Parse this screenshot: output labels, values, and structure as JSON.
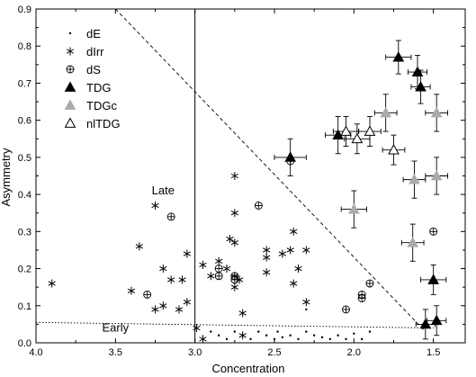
{
  "chart_data": {
    "type": "scatter",
    "title": "",
    "xlabel": "Concentration",
    "ylabel": "Asymmetry",
    "xlim": [
      4.0,
      1.3
    ],
    "ylim": [
      0.0,
      0.9
    ],
    "x_reversed": true,
    "xticks": [
      4.0,
      3.5,
      3.0,
      2.5,
      2.0,
      1.5
    ],
    "xtick_labels": [
      "4.0",
      "3.5",
      "3.0",
      "2.5",
      "2.0",
      "1.5"
    ],
    "yticks": [
      0.0,
      0.1,
      0.2,
      0.3,
      0.4,
      0.5,
      0.6,
      0.7,
      0.8,
      0.9
    ],
    "ytick_labels": [
      "0.0",
      "0.1",
      "0.2",
      "0.3",
      "0.4",
      "0.5",
      "0.6",
      "0.7",
      "0.8",
      "0.9"
    ],
    "grid": false,
    "legend_position": "top-left",
    "annotations": [
      {
        "text": "Late",
        "x": 3.2,
        "y": 0.4
      },
      {
        "text": "Early",
        "x": 3.5,
        "y": 0.03
      }
    ],
    "reference_lines": [
      {
        "style": "solid",
        "points": [
          [
            3.0,
            0.0
          ],
          [
            3.0,
            0.9
          ]
        ]
      },
      {
        "style": "dashed",
        "points": [
          [
            3.5,
            0.9
          ],
          [
            1.55,
            0.03
          ]
        ]
      },
      {
        "style": "dotted",
        "points": [
          [
            4.0,
            0.055
          ],
          [
            1.5,
            0.04
          ]
        ]
      }
    ],
    "series": [
      {
        "name": "dE",
        "marker": "dot",
        "points": [
          [
            2.9,
            0.03
          ],
          [
            2.85,
            0.02
          ],
          [
            2.8,
            0.01
          ],
          [
            2.75,
            0.03
          ],
          [
            2.7,
            0.02
          ],
          [
            2.65,
            0.01
          ],
          [
            2.6,
            0.03
          ],
          [
            2.55,
            0.02
          ],
          [
            2.5,
            0.01
          ],
          [
            2.48,
            0.03
          ],
          [
            2.45,
            0.015
          ],
          [
            2.4,
            0.02
          ],
          [
            2.35,
            0.01
          ],
          [
            2.3,
            0.03
          ],
          [
            2.25,
            0.02
          ],
          [
            2.2,
            0.015
          ],
          [
            2.15,
            0.01
          ],
          [
            2.1,
            0.02
          ],
          [
            2.05,
            0.01
          ],
          [
            2.0,
            0.025
          ],
          [
            1.95,
            0.01
          ],
          [
            1.9,
            0.03
          ],
          [
            2.3,
            0.09
          ],
          [
            2.95,
            0.01
          ]
        ]
      },
      {
        "name": "dIrr",
        "marker": "asterisk",
        "points": [
          [
            3.9,
            0.16
          ],
          [
            3.4,
            0.14
          ],
          [
            3.25,
            0.09
          ],
          [
            3.2,
            0.1
          ],
          [
            3.1,
            0.09
          ],
          [
            3.15,
            0.17
          ],
          [
            3.08,
            0.17
          ],
          [
            3.05,
            0.24
          ],
          [
            3.35,
            0.26
          ],
          [
            3.25,
            0.37
          ],
          [
            3.2,
            0.2
          ],
          [
            3.05,
            0.11
          ],
          [
            2.95,
            0.21
          ],
          [
            2.9,
            0.18
          ],
          [
            2.85,
            0.22
          ],
          [
            2.8,
            0.2
          ],
          [
            2.78,
            0.28
          ],
          [
            2.75,
            0.27
          ],
          [
            2.75,
            0.15
          ],
          [
            2.75,
            0.45
          ],
          [
            2.75,
            0.35
          ],
          [
            2.72,
            0.17
          ],
          [
            2.75,
            0.18
          ],
          [
            2.7,
            0.08
          ],
          [
            2.7,
            0.02
          ],
          [
            2.55,
            0.25
          ],
          [
            2.55,
            0.23
          ],
          [
            2.55,
            0.19
          ],
          [
            2.45,
            0.24
          ],
          [
            2.4,
            0.25
          ],
          [
            2.38,
            0.3
          ],
          [
            2.38,
            0.16
          ],
          [
            2.35,
            0.2
          ],
          [
            2.3,
            0.25
          ],
          [
            2.3,
            0.11
          ],
          [
            2.99,
            0.04
          ],
          [
            2.95,
            0.01
          ]
        ]
      },
      {
        "name": "dS",
        "marker": "circle-plus",
        "points": [
          [
            3.3,
            0.13
          ],
          [
            3.15,
            0.34
          ],
          [
            2.85,
            0.2
          ],
          [
            2.85,
            0.18
          ],
          [
            2.75,
            0.18
          ],
          [
            2.75,
            0.17
          ],
          [
            2.6,
            0.37
          ],
          [
            2.4,
            0.49
          ],
          [
            2.05,
            0.09
          ],
          [
            1.95,
            0.13
          ],
          [
            1.95,
            0.12
          ],
          [
            1.9,
            0.16
          ],
          [
            1.5,
            0.3
          ]
        ]
      },
      {
        "name": "TDG",
        "marker": "triangle-filled",
        "points": [
          {
            "x": 2.4,
            "y": 0.5,
            "xerr": 0.1,
            "yerr": 0.05
          },
          {
            "x": 2.1,
            "y": 0.56,
            "xerr": 0.08,
            "yerr": 0.05
          },
          {
            "x": 1.72,
            "y": 0.77,
            "xerr": 0.08,
            "yerr": 0.045
          },
          {
            "x": 1.6,
            "y": 0.73,
            "xerr": 0.06,
            "yerr": 0.045
          },
          {
            "x": 1.58,
            "y": 0.69,
            "xerr": 0.06,
            "yerr": 0.045
          },
          {
            "x": 1.5,
            "y": 0.17,
            "xerr": 0.08,
            "yerr": 0.04
          },
          {
            "x": 1.55,
            "y": 0.05,
            "xerr": 0.06,
            "yerr": 0.04
          },
          {
            "x": 1.48,
            "y": 0.06,
            "xerr": 0.06,
            "yerr": 0.04
          }
        ]
      },
      {
        "name": "TDGc",
        "marker": "triangle-gray",
        "points": [
          {
            "x": 2.0,
            "y": 0.36,
            "xerr": 0.08,
            "yerr": 0.05
          },
          {
            "x": 1.62,
            "y": 0.44,
            "xerr": 0.07,
            "yerr": 0.05
          },
          {
            "x": 1.48,
            "y": 0.45,
            "xerr": 0.07,
            "yerr": 0.05
          },
          {
            "x": 1.48,
            "y": 0.62,
            "xerr": 0.07,
            "yerr": 0.05
          },
          {
            "x": 1.63,
            "y": 0.27,
            "xerr": 0.07,
            "yerr": 0.05
          },
          {
            "x": 1.8,
            "y": 0.62,
            "xerr": 0.07,
            "yerr": 0.05
          }
        ]
      },
      {
        "name": "nlTDG",
        "marker": "triangle-open",
        "points": [
          {
            "x": 2.05,
            "y": 0.57,
            "xerr": 0.08,
            "yerr": 0.04
          },
          {
            "x": 1.98,
            "y": 0.55,
            "xerr": 0.08,
            "yerr": 0.04
          },
          {
            "x": 1.75,
            "y": 0.52,
            "xerr": 0.07,
            "yerr": 0.04
          },
          {
            "x": 1.9,
            "y": 0.57,
            "xerr": 0.07,
            "yerr": 0.04
          }
        ]
      }
    ],
    "legend": [
      {
        "label": "dE",
        "marker": "dot"
      },
      {
        "label": "dIrr",
        "marker": "asterisk"
      },
      {
        "label": "dS",
        "marker": "circle-plus"
      },
      {
        "label": "TDG",
        "marker": "triangle-filled"
      },
      {
        "label": "TDGc",
        "marker": "triangle-gray"
      },
      {
        "label": "nlTDG",
        "marker": "triangle-open"
      }
    ],
    "colors": {
      "TDGc": "#aaaaaa",
      "ink": "#000000"
    }
  }
}
